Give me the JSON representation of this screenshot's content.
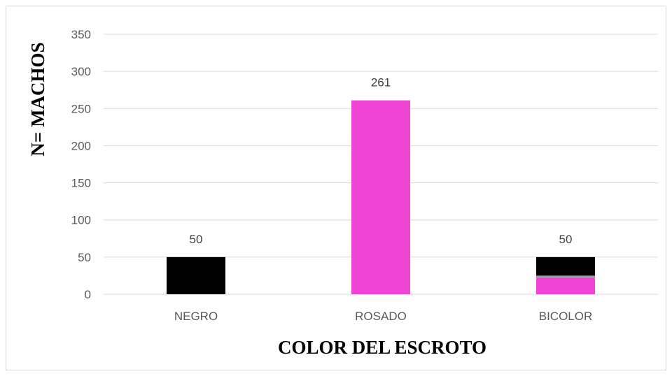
{
  "chart_data": {
    "type": "bar",
    "title": "",
    "xlabel": "COLOR DEL ESCROTO",
    "ylabel": "N= MACHOS",
    "ylim": [
      0,
      350
    ],
    "yticks": [
      0,
      50,
      100,
      150,
      200,
      250,
      300,
      350
    ],
    "grid": true,
    "legend": "none",
    "categories": [
      "NEGRO",
      "ROSADO",
      "BICOLOR"
    ],
    "values": [
      50,
      261,
      50
    ],
    "data_labels": [
      "50",
      "261",
      "50"
    ],
    "colors": {
      "negro": "#000000",
      "rosado": "#ee45d4",
      "bicolor_top": "#000000",
      "bicolor_bottom": "#ee45d4",
      "gridline": "#d9d9d9"
    },
    "bicolor_split": [
      {
        "part": "top",
        "color": "#000000",
        "from": 25,
        "to": 50
      },
      {
        "part": "bottom",
        "color": "#ee45d4",
        "from": 0,
        "to": 22
      }
    ]
  }
}
